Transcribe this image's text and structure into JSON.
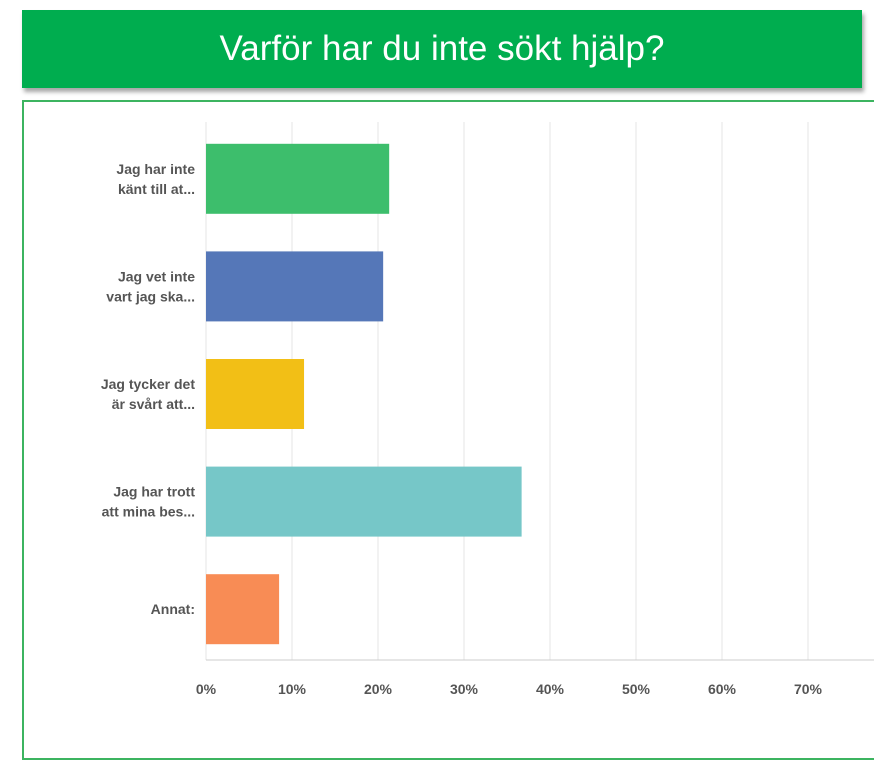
{
  "chart_data": {
    "type": "bar",
    "orientation": "horizontal",
    "title": "Varför har du inte sökt hjälp?",
    "categories": [
      "Jag har inte\nkänt till at...",
      "Jag vet inte\nvart jag ska...",
      "Jag tycker det\när svårt att...",
      "Jag har trott\natt mina bes...",
      "Annat:"
    ],
    "values": [
      21.3,
      20.6,
      11.4,
      36.7,
      8.5
    ],
    "colors": [
      "#3dbe6c",
      "#5577b8",
      "#f2bf16",
      "#76c7c8",
      "#f88c55"
    ],
    "xlim": [
      0,
      78
    ],
    "xticks": [
      {
        "value": 0,
        "label": "0%"
      },
      {
        "value": 10,
        "label": "10%"
      },
      {
        "value": 20,
        "label": "20%"
      },
      {
        "value": 30,
        "label": "30%"
      },
      {
        "value": 40,
        "label": "40%"
      },
      {
        "value": 50,
        "label": "50%"
      },
      {
        "value": 60,
        "label": "60%"
      },
      {
        "value": 70,
        "label": "70%"
      }
    ],
    "grid": true
  }
}
